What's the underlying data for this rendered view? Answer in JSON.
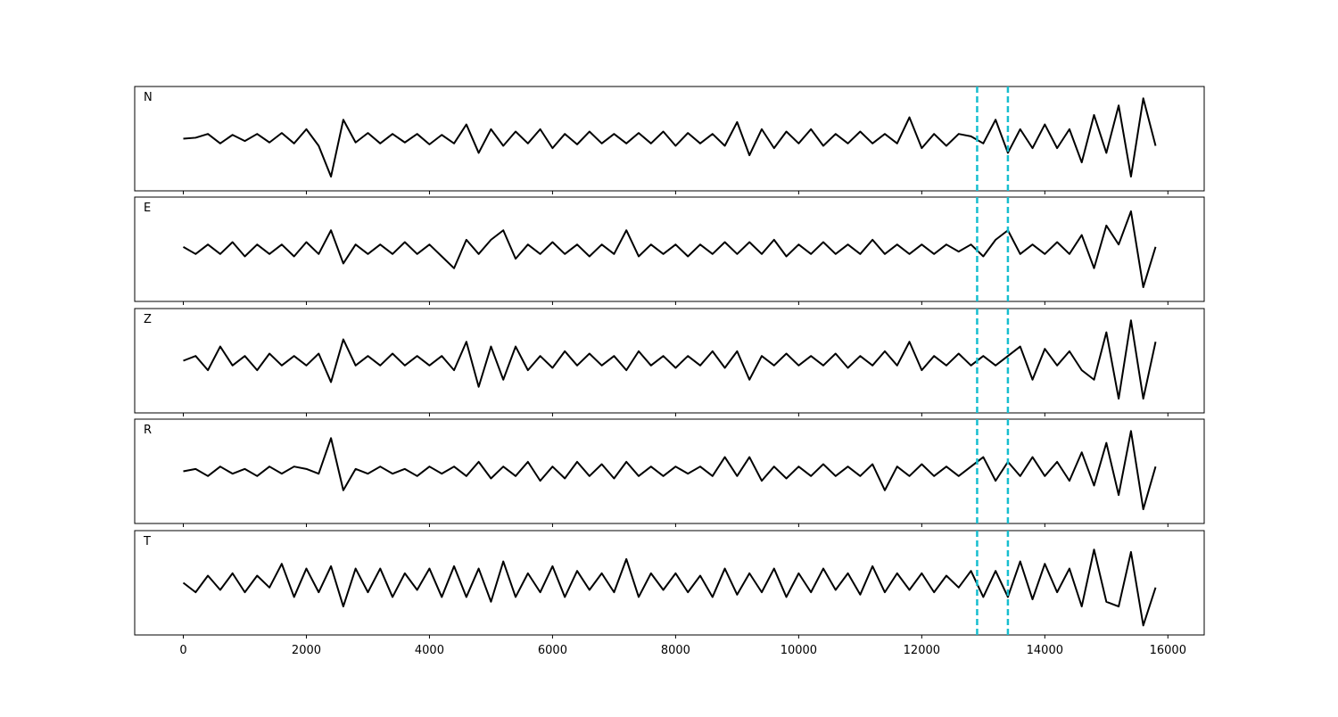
{
  "chart_data": {
    "type": "line",
    "layout": "stacked",
    "x": [
      0,
      200,
      400,
      600,
      800,
      1000,
      1200,
      1400,
      1600,
      1800,
      2000,
      2200,
      2400,
      2600,
      2800,
      3000,
      3200,
      3400,
      3600,
      3800,
      4000,
      4200,
      4400,
      4600,
      4800,
      5000,
      5200,
      5400,
      5600,
      5800,
      6000,
      6200,
      6400,
      6600,
      6800,
      7000,
      7200,
      7400,
      7600,
      7800,
      8000,
      8200,
      8400,
      8600,
      8800,
      9000,
      9200,
      9400,
      9600,
      9800,
      10000,
      10200,
      10400,
      10600,
      10800,
      11000,
      11200,
      11400,
      11600,
      11800,
      12000,
      12200,
      12400,
      12600,
      12800,
      13000,
      13200,
      13400,
      13600,
      13800,
      14000,
      14200,
      14400,
      14600,
      14800,
      15000,
      15200,
      15400,
      15600,
      15800
    ],
    "series": [
      {
        "name": "N",
        "color": "#000000",
        "values": [
          0,
          0.02,
          0.1,
          -0.1,
          0.08,
          -0.05,
          0.1,
          -0.08,
          0.12,
          -0.1,
          0.2,
          -0.15,
          -0.8,
          0.4,
          -0.08,
          0.12,
          -0.1,
          0.1,
          -0.08,
          0.1,
          -0.12,
          0.08,
          -0.1,
          0.3,
          -0.3,
          0.2,
          -0.15,
          0.15,
          -0.1,
          0.2,
          -0.2,
          0.1,
          -0.12,
          0.15,
          -0.1,
          0.1,
          -0.1,
          0.12,
          -0.1,
          0.15,
          -0.15,
          0.12,
          -0.1,
          0.1,
          -0.15,
          0.35,
          -0.35,
          0.2,
          -0.2,
          0.15,
          -0.1,
          0.2,
          -0.15,
          0.1,
          -0.1,
          0.15,
          -0.1,
          0.1,
          -0.1,
          0.45,
          -0.2,
          0.1,
          -0.15,
          0.1,
          0.05,
          -0.1,
          0.4,
          -0.3,
          0.2,
          -0.2,
          0.3,
          -0.2,
          0.2,
          -0.5,
          0.5,
          -0.3,
          0.7,
          -0.8,
          0.85,
          -0.15
        ]
      },
      {
        "name": "E",
        "color": "#000000",
        "values": [
          0.05,
          -0.1,
          0.1,
          -0.1,
          0.15,
          -0.15,
          0.1,
          -0.1,
          0.1,
          -0.15,
          0.15,
          -0.1,
          0.4,
          -0.3,
          0.1,
          -0.1,
          0.1,
          -0.1,
          0.15,
          -0.1,
          0.1,
          -0.15,
          -0.4,
          0.2,
          -0.1,
          0.2,
          0.4,
          -0.2,
          0.1,
          -0.1,
          0.15,
          -0.1,
          0.1,
          -0.15,
          0.1,
          -0.1,
          0.4,
          -0.15,
          0.1,
          -0.1,
          0.1,
          -0.15,
          0.1,
          -0.1,
          0.15,
          -0.1,
          0.15,
          -0.1,
          0.2,
          -0.15,
          0.1,
          -0.1,
          0.15,
          -0.1,
          0.1,
          -0.1,
          0.2,
          -0.1,
          0.1,
          -0.1,
          0.1,
          -0.1,
          0.1,
          -0.05,
          0.1,
          -0.15,
          0.2,
          0.4,
          -0.1,
          0.1,
          -0.1,
          0.15,
          -0.1,
          0.3,
          -0.4,
          0.5,
          0.1,
          0.8,
          -0.8,
          0.05
        ]
      },
      {
        "name": "Z",
        "color": "#000000",
        "values": [
          0,
          0.1,
          -0.2,
          0.3,
          -0.1,
          0.1,
          -0.2,
          0.15,
          -0.1,
          0.1,
          -0.1,
          0.15,
          -0.45,
          0.45,
          -0.1,
          0.1,
          -0.1,
          0.15,
          -0.1,
          0.1,
          -0.1,
          0.1,
          -0.2,
          0.4,
          -0.55,
          0.3,
          -0.4,
          0.3,
          -0.2,
          0.1,
          -0.15,
          0.2,
          -0.1,
          0.15,
          -0.1,
          0.1,
          -0.2,
          0.2,
          -0.1,
          0.1,
          -0.15,
          0.1,
          -0.1,
          0.2,
          -0.15,
          0.2,
          -0.4,
          0.1,
          -0.1,
          0.15,
          -0.1,
          0.1,
          -0.1,
          0.15,
          -0.15,
          0.1,
          -0.1,
          0.2,
          -0.1,
          0.4,
          -0.2,
          0.1,
          -0.1,
          0.15,
          -0.1,
          0.1,
          -0.1,
          0.1,
          0.3,
          -0.4,
          0.25,
          -0.1,
          0.2,
          -0.2,
          -0.4,
          0.6,
          -0.8,
          0.85,
          -0.8,
          0.4
        ]
      },
      {
        "name": "R",
        "color": "#000000",
        "values": [
          0,
          0.05,
          -0.1,
          0.1,
          -0.05,
          0.05,
          -0.1,
          0.1,
          -0.05,
          0.1,
          0.05,
          -0.05,
          0.7,
          -0.4,
          0.05,
          -0.05,
          0.1,
          -0.05,
          0.05,
          -0.1,
          0.1,
          -0.05,
          0.1,
          -0.1,
          0.2,
          -0.15,
          0.1,
          -0.1,
          0.2,
          -0.2,
          0.1,
          -0.15,
          0.2,
          -0.1,
          0.15,
          -0.15,
          0.2,
          -0.1,
          0.1,
          -0.1,
          0.1,
          -0.05,
          0.1,
          -0.1,
          0.3,
          -0.1,
          0.3,
          -0.2,
          0.1,
          -0.15,
          0.1,
          -0.1,
          0.15,
          -0.1,
          0.1,
          -0.1,
          0.15,
          -0.4,
          0.1,
          -0.1,
          0.15,
          -0.1,
          0.1,
          -0.1,
          0.1,
          0.3,
          -0.2,
          0.2,
          -0.1,
          0.3,
          -0.1,
          0.2,
          -0.2,
          0.4,
          -0.3,
          0.6,
          -0.5,
          0.85,
          -0.8,
          0.1
        ]
      },
      {
        "name": "T",
        "color": "#000000",
        "values": [
          0,
          -0.2,
          0.15,
          -0.15,
          0.2,
          -0.2,
          0.15,
          -0.1,
          0.4,
          -0.3,
          0.3,
          -0.2,
          0.35,
          -0.5,
          0.3,
          -0.2,
          0.3,
          -0.3,
          0.2,
          -0.15,
          0.3,
          -0.3,
          0.35,
          -0.3,
          0.3,
          -0.4,
          0.45,
          -0.3,
          0.2,
          -0.2,
          0.35,
          -0.3,
          0.25,
          -0.15,
          0.2,
          -0.2,
          0.5,
          -0.3,
          0.2,
          -0.15,
          0.2,
          -0.2,
          0.15,
          -0.3,
          0.3,
          -0.25,
          0.2,
          -0.2,
          0.3,
          -0.3,
          0.2,
          -0.2,
          0.3,
          -0.15,
          0.2,
          -0.25,
          0.35,
          -0.2,
          0.2,
          -0.15,
          0.2,
          -0.2,
          0.15,
          -0.1,
          0.25,
          -0.3,
          0.25,
          -0.3,
          0.45,
          -0.35,
          0.4,
          -0.2,
          0.3,
          -0.5,
          0.7,
          -0.4,
          -0.5,
          0.65,
          -0.9,
          -0.1
        ]
      }
    ],
    "vlines": [
      12900,
      13400
    ],
    "vline_color": "#17becf",
    "xlim": [
      -790,
      16590
    ],
    "xticks": [
      0,
      2000,
      4000,
      6000,
      8000,
      10000,
      12000,
      14000,
      16000
    ],
    "ylim": [
      -1.1,
      1.1
    ]
  }
}
